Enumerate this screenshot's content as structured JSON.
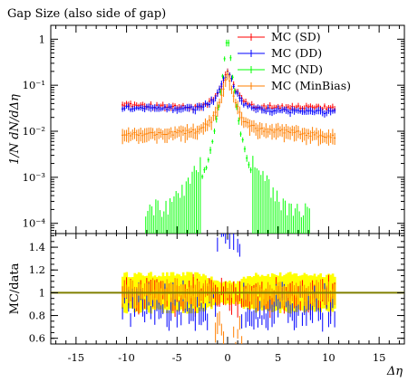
{
  "chart_data": {
    "type": "scatter",
    "title": "Gap Size (also side of gap)",
    "xlabel": "Δη",
    "top_panel": {
      "ylabel": "1/N dN/dΔη",
      "yscale": "log",
      "ylim": [
        6e-05,
        2.0
      ],
      "yticks": [
        {
          "value": 1,
          "label": "1"
        },
        {
          "value": 0.1,
          "label": "10⁻¹"
        },
        {
          "value": 0.01,
          "label": "10⁻²"
        },
        {
          "value": 0.001,
          "label": "10⁻³"
        },
        {
          "value": 0.0001,
          "label": "10⁻⁴"
        }
      ],
      "legend_position": "top-right",
      "series": [
        {
          "name": "MC (SD)",
          "color": "#ff0000",
          "x_range": [
            -10.5,
            10.5
          ],
          "anchors": [
            [
              -10.5,
              0.038
            ],
            [
              -6,
              0.034
            ],
            [
              -3,
              0.033
            ],
            [
              -1.5,
              0.045
            ],
            [
              -0.8,
              0.08
            ],
            [
              -0.3,
              0.16
            ],
            [
              0,
              0.22
            ],
            [
              0.3,
              0.16
            ],
            [
              0.8,
              0.08
            ],
            [
              1.5,
              0.045
            ],
            [
              3,
              0.033
            ],
            [
              6,
              0.034
            ],
            [
              10.5,
              0.032
            ]
          ]
        },
        {
          "name": "MC (DD)",
          "color": "#0000ff",
          "x_range": [
            -10.5,
            10.5
          ],
          "anchors": [
            [
              -10.5,
              0.032
            ],
            [
              -6,
              0.031
            ],
            [
              -3,
              0.032
            ],
            [
              -1.5,
              0.045
            ],
            [
              -0.8,
              0.075
            ],
            [
              -0.3,
              0.15
            ],
            [
              0,
              0.2
            ],
            [
              0.3,
              0.15
            ],
            [
              0.8,
              0.075
            ],
            [
              1.5,
              0.04
            ],
            [
              3,
              0.03
            ],
            [
              6,
              0.028
            ],
            [
              10.5,
              0.026
            ]
          ]
        },
        {
          "name": "MC (ND)",
          "color": "#00ff00",
          "x_range": [
            -8.2,
            8.2
          ],
          "anchors": [
            [
              -8.2,
              9e-05
            ],
            [
              -6,
              9e-05
            ],
            [
              -4.5,
              0.0002
            ],
            [
              -3,
              0.0006
            ],
            [
              -2,
              0.002
            ],
            [
              -1.2,
              0.012
            ],
            [
              -0.6,
              0.1
            ],
            [
              -0.2,
              0.6
            ],
            [
              0,
              1.0
            ],
            [
              0.2,
              0.6
            ],
            [
              0.6,
              0.1
            ],
            [
              1.2,
              0.012
            ],
            [
              2,
              0.002
            ],
            [
              3,
              0.0006
            ],
            [
              4.5,
              0.0002
            ],
            [
              6,
              9e-05
            ],
            [
              8.2,
              9e-05
            ]
          ]
        },
        {
          "name": "MC (MinBias)",
          "color": "#ff7f00",
          "x_range": [
            -10.5,
            10.5
          ],
          "anchors": [
            [
              -10.5,
              0.0085
            ],
            [
              -6,
              0.009
            ],
            [
              -3,
              0.01
            ],
            [
              -1.5,
              0.018
            ],
            [
              -0.8,
              0.04
            ],
            [
              -0.3,
              0.1
            ],
            [
              0,
              0.16
            ],
            [
              0.3,
              0.1
            ],
            [
              0.8,
              0.04
            ],
            [
              1.5,
              0.018
            ],
            [
              3,
              0.011
            ],
            [
              6,
              0.01
            ],
            [
              10.5,
              0.0075
            ]
          ]
        }
      ]
    },
    "ratio_panel": {
      "ylabel": "MC/data",
      "ylim": [
        0.55,
        1.52
      ],
      "yticks": [
        0.6,
        0.8,
        1,
        1.2,
        1.4
      ],
      "reference_line": 1,
      "data_band_color": "#ffff00",
      "data_band_range": [
        -10.5,
        10.5
      ],
      "data_band_half_width": 0.16,
      "series": [
        {
          "name": "MC (SD)",
          "color": "#ff0000",
          "baseline": 0.97,
          "spread": 0.1
        },
        {
          "name": "MC (DD)",
          "color": "#0000ff",
          "baseline": 0.88,
          "spread": 0.14
        },
        {
          "name": "MC (MinBias)",
          "color": "#ff7f00",
          "baseline": 0.99,
          "spread": 0.05
        }
      ]
    },
    "xlim": [
      -17.5,
      17.5
    ],
    "xticks": [
      -15,
      -10,
      -5,
      0,
      5,
      10,
      15
    ],
    "grid": false
  }
}
